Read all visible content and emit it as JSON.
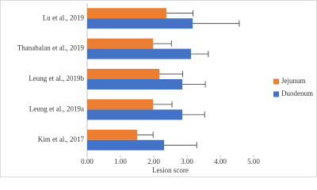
{
  "chart_data": {
    "type": "hbar",
    "categories": [
      "Lu et al., 2019",
      "Thanabalan et al., 2019",
      "Leung et al., 2019b",
      "Leung et al., 2019a",
      "Kim et al., 2017"
    ],
    "series": [
      {
        "name": "Jejunum",
        "color": "#ed7d31",
        "values": [
          2.38,
          1.98,
          2.17,
          1.98,
          1.5
        ],
        "errors": [
          0.8,
          0.55,
          0.7,
          0.57,
          0.48
        ]
      },
      {
        "name": "Duodenum",
        "color": "#4472c4",
        "values": [
          3.17,
          3.12,
          2.86,
          2.86,
          2.31
        ],
        "errors": [
          1.4,
          0.52,
          0.69,
          0.67,
          0.98
        ]
      }
    ],
    "xlabel": "Lesion score",
    "xlim": [
      0,
      5
    ],
    "xticks": [
      {
        "value": 0,
        "label": "0.00"
      },
      {
        "value": 1,
        "label": "1.00"
      },
      {
        "value": 2,
        "label": "2.00"
      },
      {
        "value": 3,
        "label": "3.00"
      },
      {
        "value": 4,
        "label": "4.00"
      },
      {
        "value": 5,
        "label": "5.00"
      }
    ],
    "grid": false
  }
}
